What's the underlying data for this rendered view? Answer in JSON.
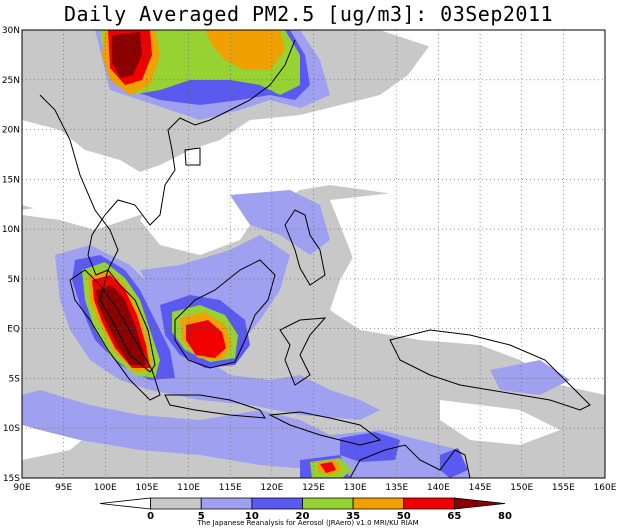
{
  "title": "Daily Averaged PM2.5 [ug/m3]: 03Sep2011",
  "map": {
    "lon_range": [
      90,
      160
    ],
    "lat_range": [
      -15,
      30
    ],
    "lon_ticks": [
      "90E",
      "95E",
      "100E",
      "105E",
      "110E",
      "115E",
      "120E",
      "125E",
      "130E",
      "135E",
      "140E",
      "145E",
      "150E",
      "155E",
      "160E"
    ],
    "lat_ticks": [
      "30N",
      "25N",
      "20N",
      "15N",
      "10N",
      "5N",
      "EQ",
      "5S",
      "10S",
      "15S"
    ],
    "grid": "dotted"
  },
  "legend": {
    "levels": [
      "0",
      "5",
      "10",
      "20",
      "35",
      "50",
      "65",
      "80"
    ],
    "colors": [
      "#ffffff",
      "#c8c8c8",
      "#a0a0f0",
      "#5a5af0",
      "#96d232",
      "#f0a000",
      "#f00000",
      "#8b0000"
    ],
    "credit": "The Japanese Reanalysis for Aerosol (JRAero) v1.0 MRI/KU RIAM"
  }
}
